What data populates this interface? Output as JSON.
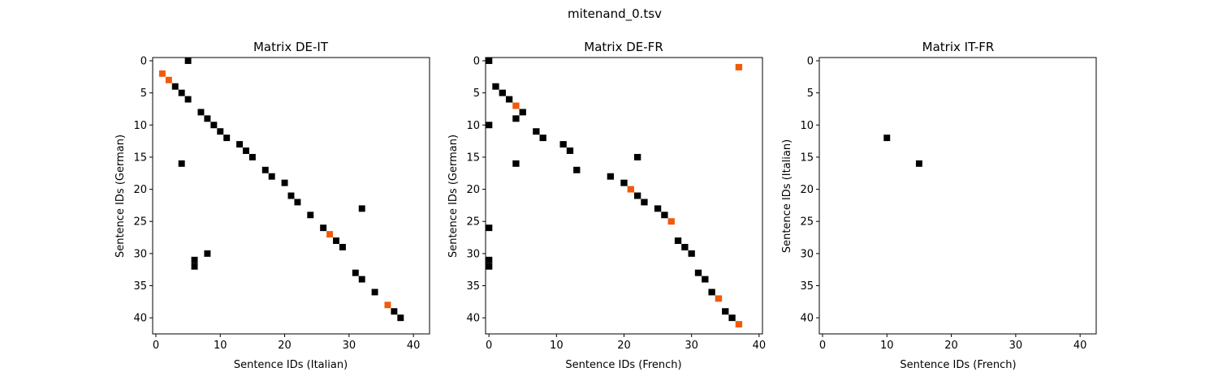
{
  "figure": {
    "suptitle": "mitenand_0.tsv"
  },
  "colors": {
    "match": "#000000",
    "highlight": "#f05a0a"
  },
  "chart_data": [
    {
      "type": "heatmap",
      "title": "Matrix DE-IT",
      "xlabel": "Sentence IDs (Italian)",
      "ylabel": "Sentence IDs (German)",
      "xlim": [
        -0.5,
        42.5
      ],
      "ylim": [
        42.5,
        -0.5
      ],
      "xticks": [
        0,
        10,
        20,
        30,
        40
      ],
      "yticks": [
        0,
        5,
        10,
        15,
        20,
        25,
        30,
        35,
        40
      ],
      "grid": false,
      "points": [
        {
          "x": 5,
          "y": 0,
          "v": "match"
        },
        {
          "x": 1,
          "y": 2,
          "v": "highlight"
        },
        {
          "x": 2,
          "y": 3,
          "v": "highlight"
        },
        {
          "x": 3,
          "y": 4,
          "v": "match"
        },
        {
          "x": 4,
          "y": 5,
          "v": "match"
        },
        {
          "x": 5,
          "y": 6,
          "v": "match"
        },
        {
          "x": 7,
          "y": 8,
          "v": "match"
        },
        {
          "x": 8,
          "y": 9,
          "v": "match"
        },
        {
          "x": 9,
          "y": 10,
          "v": "match"
        },
        {
          "x": 10,
          "y": 11,
          "v": "match"
        },
        {
          "x": 11,
          "y": 12,
          "v": "match"
        },
        {
          "x": 13,
          "y": 13,
          "v": "match"
        },
        {
          "x": 14,
          "y": 14,
          "v": "match"
        },
        {
          "x": 15,
          "y": 15,
          "v": "match"
        },
        {
          "x": 4,
          "y": 16,
          "v": "match"
        },
        {
          "x": 17,
          "y": 17,
          "v": "match"
        },
        {
          "x": 18,
          "y": 18,
          "v": "match"
        },
        {
          "x": 20,
          "y": 19,
          "v": "match"
        },
        {
          "x": 21,
          "y": 21,
          "v": "match"
        },
        {
          "x": 22,
          "y": 22,
          "v": "match"
        },
        {
          "x": 32,
          "y": 23,
          "v": "match"
        },
        {
          "x": 24,
          "y": 24,
          "v": "match"
        },
        {
          "x": 26,
          "y": 26,
          "v": "match"
        },
        {
          "x": 27,
          "y": 27,
          "v": "highlight"
        },
        {
          "x": 28,
          "y": 28,
          "v": "match"
        },
        {
          "x": 29,
          "y": 29,
          "v": "match"
        },
        {
          "x": 8,
          "y": 30,
          "v": "match"
        },
        {
          "x": 6,
          "y": 31,
          "v": "match"
        },
        {
          "x": 6,
          "y": 32,
          "v": "match"
        },
        {
          "x": 31,
          "y": 33,
          "v": "match"
        },
        {
          "x": 32,
          "y": 34,
          "v": "match"
        },
        {
          "x": 34,
          "y": 36,
          "v": "match"
        },
        {
          "x": 36,
          "y": 38,
          "v": "highlight"
        },
        {
          "x": 37,
          "y": 39,
          "v": "match"
        },
        {
          "x": 38,
          "y": 40,
          "v": "match"
        }
      ]
    },
    {
      "type": "heatmap",
      "title": "Matrix DE-FR",
      "xlabel": "Sentence IDs (French)",
      "ylabel": "Sentence IDs (German)",
      "xlim": [
        -0.5,
        40.5
      ],
      "ylim": [
        42.5,
        -0.5
      ],
      "xticks": [
        0,
        10,
        20,
        30,
        40
      ],
      "yticks": [
        0,
        5,
        10,
        15,
        20,
        25,
        30,
        35,
        40
      ],
      "grid": false,
      "points": [
        {
          "x": 0,
          "y": 0,
          "v": "match"
        },
        {
          "x": 37,
          "y": 1,
          "v": "highlight"
        },
        {
          "x": 1,
          "y": 4,
          "v": "match"
        },
        {
          "x": 2,
          "y": 5,
          "v": "match"
        },
        {
          "x": 3,
          "y": 6,
          "v": "match"
        },
        {
          "x": 4,
          "y": 7,
          "v": "highlight"
        },
        {
          "x": 5,
          "y": 8,
          "v": "match"
        },
        {
          "x": 4,
          "y": 9,
          "v": "match"
        },
        {
          "x": 0,
          "y": 10,
          "v": "match"
        },
        {
          "x": 7,
          "y": 11,
          "v": "match"
        },
        {
          "x": 8,
          "y": 12,
          "v": "match"
        },
        {
          "x": 11,
          "y": 13,
          "v": "match"
        },
        {
          "x": 12,
          "y": 14,
          "v": "match"
        },
        {
          "x": 22,
          "y": 15,
          "v": "match"
        },
        {
          "x": 4,
          "y": 16,
          "v": "match"
        },
        {
          "x": 13,
          "y": 17,
          "v": "match"
        },
        {
          "x": 18,
          "y": 18,
          "v": "match"
        },
        {
          "x": 20,
          "y": 19,
          "v": "match"
        },
        {
          "x": 21,
          "y": 20,
          "v": "highlight"
        },
        {
          "x": 22,
          "y": 21,
          "v": "match"
        },
        {
          "x": 23,
          "y": 22,
          "v": "match"
        },
        {
          "x": 25,
          "y": 23,
          "v": "match"
        },
        {
          "x": 26,
          "y": 24,
          "v": "match"
        },
        {
          "x": 27,
          "y": 25,
          "v": "highlight"
        },
        {
          "x": 0,
          "y": 26,
          "v": "match"
        },
        {
          "x": 28,
          "y": 28,
          "v": "match"
        },
        {
          "x": 29,
          "y": 29,
          "v": "match"
        },
        {
          "x": 30,
          "y": 30,
          "v": "match"
        },
        {
          "x": 0,
          "y": 31,
          "v": "match"
        },
        {
          "x": 0,
          "y": 32,
          "v": "match"
        },
        {
          "x": 31,
          "y": 33,
          "v": "match"
        },
        {
          "x": 32,
          "y": 34,
          "v": "match"
        },
        {
          "x": 33,
          "y": 36,
          "v": "match"
        },
        {
          "x": 34,
          "y": 37,
          "v": "highlight"
        },
        {
          "x": 35,
          "y": 39,
          "v": "match"
        },
        {
          "x": 36,
          "y": 40,
          "v": "match"
        },
        {
          "x": 37,
          "y": 41,
          "v": "highlight"
        }
      ]
    },
    {
      "type": "heatmap",
      "title": "Matrix IT-FR",
      "xlabel": "Sentence IDs (French)",
      "ylabel": "Sentence IDs (Italian)",
      "xlim": [
        -0.5,
        42.5
      ],
      "ylim": [
        42.5,
        -0.5
      ],
      "xticks": [
        0,
        10,
        20,
        30,
        40
      ],
      "yticks": [
        0,
        5,
        10,
        15,
        20,
        25,
        30,
        35,
        40
      ],
      "grid": false,
      "points": [
        {
          "x": 10,
          "y": 12,
          "v": "match"
        },
        {
          "x": 15,
          "y": 16,
          "v": "match"
        }
      ]
    }
  ]
}
